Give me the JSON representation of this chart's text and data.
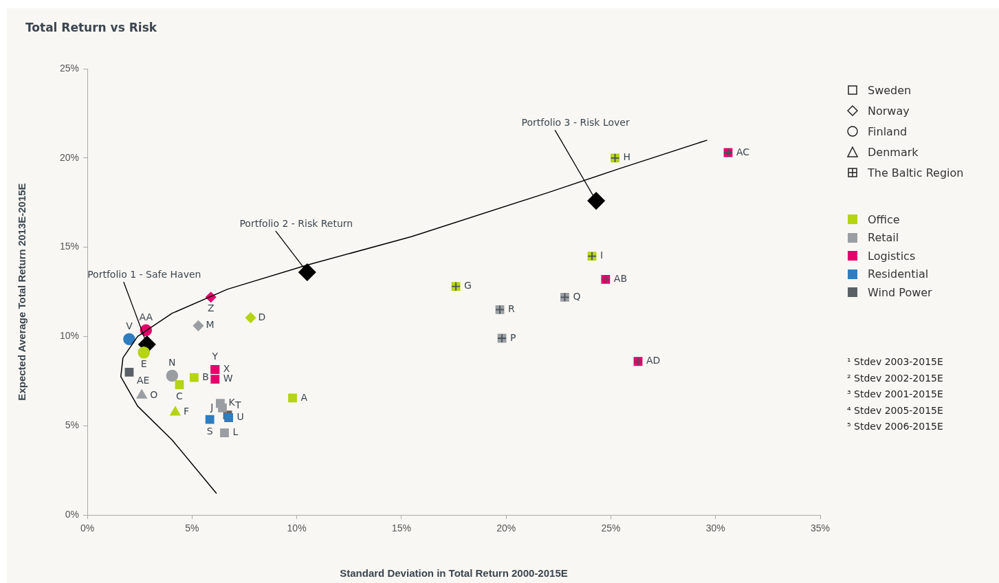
{
  "chart_data": {
    "type": "scatter",
    "title": "Total Return vs Risk",
    "xlabel": "Standard Deviation in Total Return 2000-2015E",
    "ylabel": "Expected Average Total Return 2013E-2015E",
    "xlim": [
      0,
      35
    ],
    "ylim": [
      0,
      25
    ],
    "xticks": [
      {
        "value": 0,
        "label": "0%"
      },
      {
        "value": 5,
        "label": "5%"
      },
      {
        "value": 10,
        "label": "10%"
      },
      {
        "value": 15,
        "label": "15%"
      },
      {
        "value": 20,
        "label": "20%"
      },
      {
        "value": 25,
        "label": "25%"
      },
      {
        "value": 30,
        "label": "30%"
      },
      {
        "value": 35,
        "label": "35%"
      }
    ],
    "yticks": [
      {
        "value": 0,
        "label": "0%"
      },
      {
        "value": 5,
        "label": "5%"
      },
      {
        "value": 10,
        "label": "10%"
      },
      {
        "value": 15,
        "label": "15%"
      },
      {
        "value": 20,
        "label": "20%"
      },
      {
        "value": 25,
        "label": "25%"
      }
    ],
    "grid": false,
    "legend": "right",
    "series": [
      {
        "type": "line",
        "color": "#000000",
        "marker": "none",
        "x": [
          6.17,
          4.05,
          2.4,
          1.6,
          1.7,
          2.4,
          4.05,
          6.7,
          10.5,
          15.5,
          22.1,
          25.4,
          29.6
        ],
        "values": [
          1.2,
          4.2,
          6.1,
          7.75,
          8.8,
          10.0,
          11.3,
          12.65,
          14.0,
          15.6,
          18.1,
          19.4,
          21.0
        ]
      },
      {
        "color": "#b5d414",
        "marker": "square",
        "x": [
          9.8,
          5.1,
          4.4
        ],
        "values": [
          6.55,
          7.7,
          7.3
        ],
        "value_labels": [
          "A",
          "B",
          "C"
        ]
      },
      {
        "color": "#b5d414",
        "marker": "diamond",
        "x": [
          7.8
        ],
        "values": [
          11.05
        ],
        "value_labels": [
          "D"
        ]
      },
      {
        "color": "#b5d414",
        "marker": "circle",
        "x": [
          2.7
        ],
        "values": [
          9.1
        ],
        "value_labels": [
          "E"
        ]
      },
      {
        "color": "#b5d414",
        "marker": "triangle",
        "x": [
          4.2
        ],
        "values": [
          5.75
        ],
        "value_labels": [
          "F"
        ]
      },
      {
        "color": "#b5d414",
        "marker": "square-cross",
        "x": [
          17.6,
          25.2,
          24.1
        ],
        "values": [
          12.8,
          20.0,
          14.5
        ],
        "value_labels": [
          "G",
          "H",
          "I"
        ]
      },
      {
        "color": "#9a9ea2",
        "marker": "square",
        "x": [
          6.45,
          6.35,
          6.55
        ],
        "values": [
          6.0,
          6.25,
          4.6
        ],
        "value_labels": [
          "J",
          "K",
          "L"
        ]
      },
      {
        "color": "#9a9ea2",
        "marker": "diamond",
        "x": [
          5.3
        ],
        "values": [
          10.6
        ],
        "value_labels": [
          "M"
        ]
      },
      {
        "color": "#9a9ea2",
        "marker": "circle",
        "x": [
          4.05
        ],
        "values": [
          7.8
        ],
        "value_labels": [
          "N"
        ]
      },
      {
        "color": "#9a9ea2",
        "marker": "triangle",
        "x": [
          2.6
        ],
        "values": [
          6.7
        ],
        "value_labels": [
          "O"
        ]
      },
      {
        "color": "#9a9ea2",
        "marker": "square-cross",
        "x": [
          19.8,
          22.8,
          19.7
        ],
        "values": [
          9.9,
          12.2,
          11.5
        ],
        "value_labels": [
          "P",
          "Q",
          "R"
        ]
      },
      {
        "color": "#2f7dc1",
        "marker": "square",
        "x": [
          5.85,
          6.75
        ],
        "values": [
          5.35,
          5.45
        ],
        "value_labels": [
          "S",
          "U"
        ]
      },
      {
        "color": "#5a6267",
        "marker": "square",
        "x": [
          6.7,
          2.0
        ],
        "values": [
          5.6,
          8.0
        ],
        "value_labels": [
          "T",
          "AE"
        ]
      },
      {
        "color": "#2f7dc1",
        "marker": "circle",
        "x": [
          2.0
        ],
        "values": [
          9.85
        ],
        "value_labels": [
          "V"
        ]
      },
      {
        "color": "#e5006d",
        "marker": "square",
        "x": [
          6.1,
          6.1,
          6.1
        ],
        "values": [
          7.6,
          8.15,
          8.15
        ],
        "value_labels": [
          "W",
          "X",
          "Y"
        ]
      },
      {
        "color": "#e5006d",
        "marker": "diamond",
        "x": [
          5.9
        ],
        "values": [
          12.2
        ],
        "value_labels": [
          "Z"
        ]
      },
      {
        "color": "#e5006d",
        "marker": "circle",
        "x": [
          2.8
        ],
        "values": [
          10.35
        ],
        "value_labels": [
          "AA"
        ]
      },
      {
        "color": "#e5006d",
        "marker": "square-cross",
        "x": [
          24.75,
          30.6,
          26.3
        ],
        "values": [
          13.2,
          20.3,
          8.6
        ],
        "value_labels": [
          "AB",
          "AC",
          "AD"
        ]
      },
      {
        "color": "#000000",
        "marker": "diamond",
        "x": [
          2.85,
          10.5,
          24.3
        ],
        "values": [
          9.55,
          13.6,
          17.6
        ]
      },
      {
        "name": "Sweden",
        "color": "#222222",
        "marker": "square"
      },
      {
        "name": "Norway",
        "color": "#222222",
        "marker": "diamond"
      },
      {
        "name": "Finland",
        "color": "#222222",
        "marker": "circle"
      },
      {
        "name": "Denmark",
        "color": "#222222",
        "marker": "triangle"
      },
      {
        "name": "The Baltic Region",
        "color": "#222222",
        "marker": "square-cross"
      },
      {
        "name": "Office",
        "color": "#b5d414",
        "marker": "square"
      },
      {
        "name": "Retail",
        "color": "#9a9ea2",
        "marker": "square"
      },
      {
        "name": "Logistics",
        "color": "#e5006d",
        "marker": "square"
      },
      {
        "name": "Residential",
        "color": "#2f7dc1",
        "marker": "square"
      },
      {
        "name": "Wind Power",
        "color": "#5a6267",
        "marker": "square"
      }
    ],
    "annotations": [
      {
        "text": "Portfolio 1 - Safe Haven",
        "x": 2.85,
        "y": 9.55
      },
      {
        "text": "Portfolio 2 - Risk Return",
        "x": 10.5,
        "y": 13.6
      },
      {
        "text": "Portfolio 3 - Risk Lover",
        "x": 24.3,
        "y": 17.6
      },
      "¹ Stdev 2003-2015E",
      "² Stdev 2002-2015E",
      "³ Stdev 2001-2015E",
      "⁴ Stdev 2005-2015E",
      "⁵ Stdev 2006-2015E"
    ]
  }
}
